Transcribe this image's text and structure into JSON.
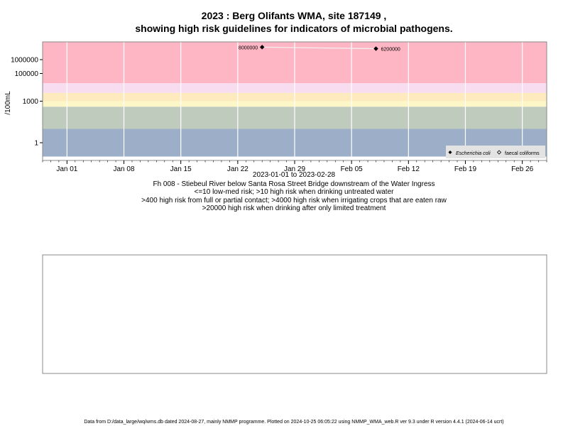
{
  "chart_data": {
    "type": "scatter",
    "title": "2023 : Berg Olifants WMA, site 187149 ,",
    "title2": "showing high risk guidelines for indicators of microbial pathogens.",
    "ylabel": "/100mL",
    "y_scale": "log",
    "x_range": [
      "2022-12-29",
      "2023-03-01"
    ],
    "y_tick_values": [
      1,
      1000,
      100000,
      1000000
    ],
    "y_tick_labels": [
      "1",
      "1000",
      "100000",
      "1000000"
    ],
    "x_ticks": [
      {
        "date": "2023-01-01",
        "label": "Jan 01"
      },
      {
        "date": "2023-01-08",
        "label": "Jan 08"
      },
      {
        "date": "2023-01-15",
        "label": "Jan 15"
      },
      {
        "date": "2023-01-22",
        "label": "Jan 22"
      },
      {
        "date": "2023-01-29",
        "label": "Jan 29"
      },
      {
        "date": "2023-02-05",
        "label": "Feb 05"
      },
      {
        "date": "2023-02-12",
        "label": "Feb 12"
      },
      {
        "date": "2023-02-19",
        "label": "Feb 19"
      },
      {
        "date": "2023-02-26",
        "label": "Feb 26"
      }
    ],
    "bands": [
      {
        "from": 0.1,
        "to": 10,
        "color": "#9daec9"
      },
      {
        "from": 10,
        "to": 400,
        "color": "#bfcbbd"
      },
      {
        "from": 400,
        "to": 1000,
        "color": "#fdf6c6"
      },
      {
        "from": 1000,
        "to": 4000,
        "color": "#fdebbe"
      },
      {
        "from": 4000,
        "to": 20000,
        "color": "#f8dcef"
      },
      {
        "from": 20000,
        "to": 40000000,
        "color": "#ffb6c4"
      }
    ],
    "series": [
      {
        "name": "Escherichia coli",
        "marker": "filled-diamond",
        "points": [
          {
            "x": "2023-01-25",
            "y": 8000000,
            "label": "8000000"
          },
          {
            "x": "2023-02-08",
            "y": 6200000,
            "label": "6200000"
          }
        ]
      },
      {
        "name": "faecal coliforms",
        "marker": "open-diamond",
        "points": []
      }
    ],
    "legend_position": "bottom-right",
    "xlabel": "2023-01-01 to 2023-02-28",
    "subtitle_lines": [
      "Fh 008 - Stiebeul River below Santa Rosa Street Bridge downstream of the Water Ingress",
      "<=10 low-med risk; >10 high risk when drinking untreated water",
      ">400 high risk from full or partial contact; >4000 high risk when irrigating crops that are eaten raw",
      ">20000 high risk when drinking after only limited treatment"
    ]
  },
  "footer": "Data from D:/data_large/wq/wms.db dated 2024-08-27, mainly NMMP programme. Plotted on 2024-10-25 06:05:22 using NMMP_WMA_web.R ver 9.3 under R version 4.4.1 (2024-06-14 ucrt)"
}
